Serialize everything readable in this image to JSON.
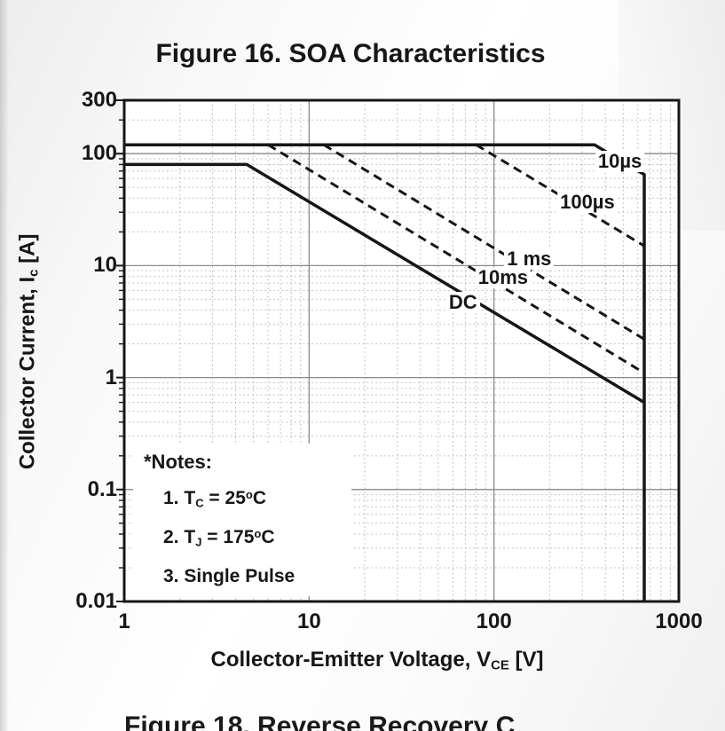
{
  "page": {
    "title": "Figure 16. SOA Characteristics",
    "bottom_caption": "Figure 18. Reverse Recovery C"
  },
  "notes": {
    "header": "*Notes:",
    "items": [
      {
        "pre": "1. T",
        "sub": "C",
        "mid": " = 25",
        "sup": "o",
        "post": "C"
      },
      {
        "pre": "2. T",
        "sub": "J",
        "mid": " = 175",
        "sup": "o",
        "post": "C"
      },
      {
        "pre": "3. Single Pulse",
        "sub": "",
        "mid": "",
        "sup": "",
        "post": ""
      }
    ]
  },
  "colors": {
    "curve": "#161616",
    "axis_border": "#161616",
    "major_grid": "#8a8a8a",
    "minor_grid": "#b5b5b5",
    "label_text": "#161616",
    "background": "#ffffff"
  },
  "chart_data": {
    "type": "line",
    "title": "Figure 16. SOA Characteristics",
    "xlabel": {
      "pre": "Collector-Emitter Voltage, V",
      "sub": "CE",
      "post": " [V]"
    },
    "ylabel": {
      "pre": "Collector Current, I",
      "sub": "c",
      "post": " [A]"
    },
    "x_axis": {
      "scale": "log",
      "min": 1,
      "max": 1000,
      "ticks": [
        1,
        10,
        100,
        1000
      ],
      "tick_labels": [
        "1",
        "10",
        "100",
        "1000"
      ]
    },
    "y_axis": {
      "scale": "log",
      "min": 0.01,
      "max": 300,
      "ticks": [
        300,
        100,
        10,
        1,
        0.1,
        0.01
      ],
      "tick_labels": [
        "300",
        "100",
        "10",
        "1",
        "0.1",
        "0.01"
      ]
    },
    "grid": {
      "major": "solid",
      "minor": "dotted"
    },
    "voltage_limit": 650,
    "series": [
      {
        "name": "10µs",
        "style": "solid",
        "width": 3.5,
        "points": [
          [
            1,
            120
          ],
          [
            350,
            120
          ],
          [
            650,
            65
          ],
          [
            650,
            0.01
          ]
        ],
        "label_pos": [
          480,
          85
        ]
      },
      {
        "name": "100µs",
        "style": "dashed",
        "width": 3,
        "points": [
          [
            80,
            120
          ],
          [
            650,
            15
          ]
        ],
        "label_pos": [
          320,
          37
        ]
      },
      {
        "name": "1 ms",
        "style": "dashed",
        "width": 3,
        "points": [
          [
            12,
            120
          ],
          [
            650,
            2.2
          ]
        ],
        "label_pos": [
          155,
          11.5
        ]
      },
      {
        "name": "10ms",
        "style": "dashed",
        "width": 3,
        "points": [
          [
            6,
            120
          ],
          [
            650,
            1.1
          ]
        ],
        "label_pos": [
          112,
          7.8
        ]
      },
      {
        "name": "DC",
        "style": "solid",
        "width": 3.5,
        "points": [
          [
            1,
            80
          ],
          [
            4.6,
            80
          ],
          [
            650,
            0.6
          ]
        ],
        "label_pos": [
          68,
          4.7
        ]
      }
    ]
  }
}
